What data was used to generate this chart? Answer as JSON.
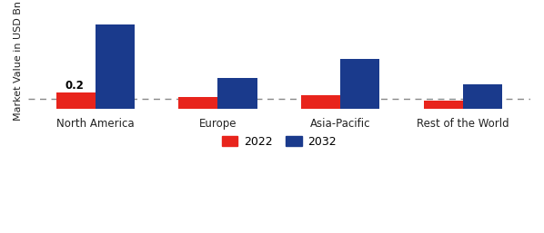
{
  "categories": [
    "North America",
    "Europe",
    "Asia-Pacific",
    "Rest of the World"
  ],
  "values_2022": [
    0.2,
    0.14,
    0.16,
    0.1
  ],
  "values_2032": [
    1.05,
    0.38,
    0.62,
    0.3
  ],
  "bar_color_2022": "#e8241c",
  "bar_color_2032": "#1a3a8c",
  "ylabel": "Market Value in USD Bn",
  "annotation": "0.2",
  "dashed_line_y": 0.12,
  "background_color": "#ffffff",
  "legend_labels": [
    "2022",
    "2032"
  ],
  "bar_width": 0.32,
  "ylim": [
    0,
    1.18
  ],
  "figsize": [
    5.98,
    2.57
  ],
  "dpi": 100
}
